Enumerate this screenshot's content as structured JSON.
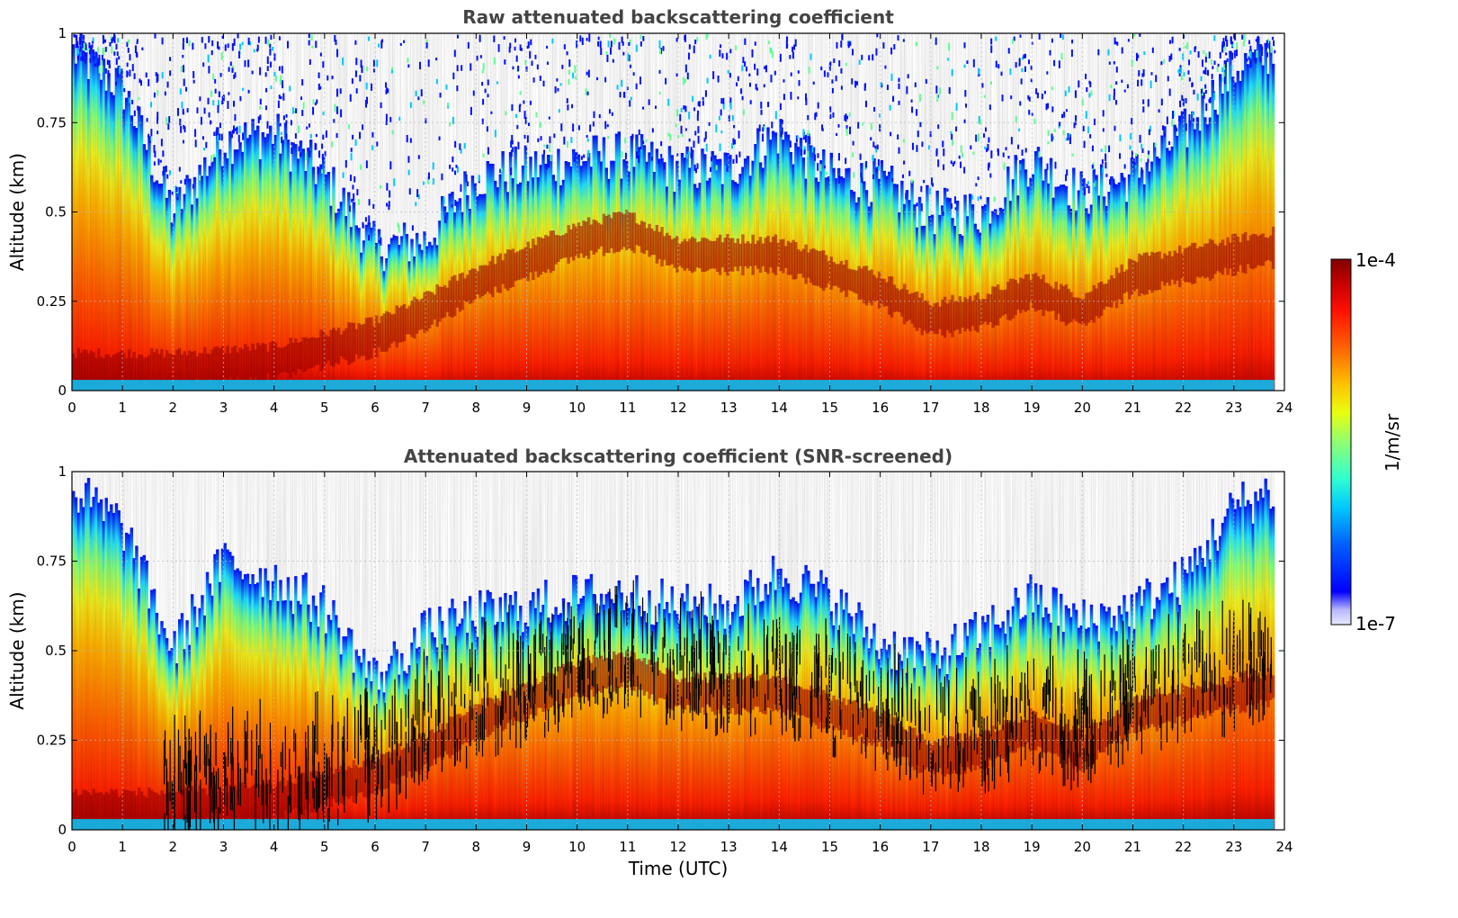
{
  "chart_data": [
    {
      "type": "heatmap",
      "title": "Raw attenuated backscattering coefficient",
      "xlabel": "",
      "ylabel": "Altitude (km)",
      "xlim": [
        0,
        24
      ],
      "ylim": [
        0,
        1
      ],
      "x_ticks": [
        "0",
        "1",
        "2",
        "3",
        "4",
        "5",
        "6",
        "7",
        "8",
        "9",
        "10",
        "11",
        "12",
        "13",
        "14",
        "15",
        "16",
        "17",
        "18",
        "19",
        "20",
        "21",
        "22",
        "23",
        "24"
      ],
      "y_ticks": [
        "0",
        "0.25",
        "0.5",
        "0.75",
        "1"
      ],
      "grid": true,
      "screened": false,
      "boundary_layer_top_km": {
        "time_utc": [
          0,
          1,
          2,
          3,
          4,
          5,
          6,
          7,
          8,
          9,
          10,
          11,
          12,
          13,
          14,
          15,
          16,
          17,
          18,
          19,
          20,
          21,
          22,
          23,
          23.8
        ],
        "height_km": [
          0.95,
          0.85,
          0.5,
          0.7,
          0.72,
          0.6,
          0.4,
          0.42,
          0.6,
          0.62,
          0.65,
          0.66,
          0.62,
          0.62,
          0.72,
          0.6,
          0.58,
          0.5,
          0.5,
          0.65,
          0.55,
          0.6,
          0.72,
          0.9,
          0.95
        ]
      },
      "max_backscatter_layer_km": {
        "time_utc": [
          0,
          2,
          4,
          6,
          7,
          8,
          10,
          11,
          12,
          14,
          16,
          17,
          18,
          19,
          20,
          21,
          22,
          23,
          23.8
        ],
        "height_km": [
          0.06,
          0.06,
          0.08,
          0.15,
          0.22,
          0.3,
          0.42,
          0.45,
          0.38,
          0.38,
          0.28,
          0.2,
          0.22,
          0.28,
          0.22,
          0.32,
          0.35,
          0.38,
          0.4
        ]
      }
    },
    {
      "type": "heatmap",
      "title": "Attenuated backscattering coefficient (SNR-screened)",
      "xlabel": "Time (UTC)",
      "ylabel": "Altitude (km)",
      "xlim": [
        0,
        24
      ],
      "ylim": [
        0,
        1
      ],
      "x_ticks": [
        "0",
        "1",
        "2",
        "3",
        "4",
        "5",
        "6",
        "7",
        "8",
        "9",
        "10",
        "11",
        "12",
        "13",
        "14",
        "15",
        "16",
        "17",
        "18",
        "19",
        "20",
        "21",
        "22",
        "23",
        "24"
      ],
      "y_ticks": [
        "0",
        "0.25",
        "0.5",
        "0.75",
        "1"
      ],
      "grid": true,
      "screened": true,
      "boundary_layer_top_km": {
        "time_utc": [
          0,
          1,
          2,
          3,
          4,
          5,
          6,
          7,
          8,
          9,
          10,
          11,
          12,
          13,
          14,
          15,
          16,
          17,
          18,
          19,
          20,
          21,
          22,
          23,
          23.8
        ],
        "height_km": [
          0.95,
          0.85,
          0.5,
          0.75,
          0.7,
          0.62,
          0.42,
          0.55,
          0.6,
          0.62,
          0.65,
          0.66,
          0.62,
          0.62,
          0.72,
          0.65,
          0.52,
          0.48,
          0.55,
          0.65,
          0.58,
          0.62,
          0.7,
          0.9,
          0.95
        ]
      },
      "max_backscatter_layer_km": {
        "time_utc": [
          0,
          2,
          4,
          6,
          7,
          8,
          10,
          11,
          12,
          14,
          16,
          17,
          18,
          19,
          20,
          21,
          22,
          23,
          23.8
        ],
        "height_km": [
          0.06,
          0.06,
          0.08,
          0.15,
          0.22,
          0.3,
          0.42,
          0.45,
          0.38,
          0.38,
          0.28,
          0.2,
          0.22,
          0.28,
          0.22,
          0.32,
          0.35,
          0.38,
          0.4
        ]
      }
    }
  ],
  "colorbar": {
    "label": "1/m/sr",
    "max_label": "1e-4",
    "min_label": "1e-7",
    "scale": "log",
    "range": [
      1e-07,
      0.0001
    ],
    "colormap": "jet"
  }
}
